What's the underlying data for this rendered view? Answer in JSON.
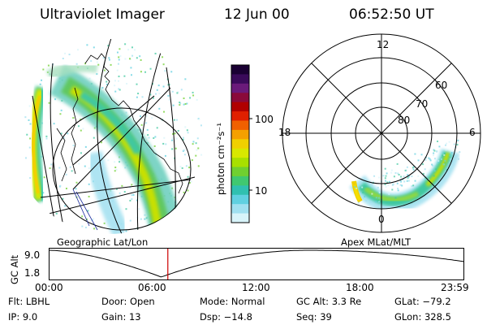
{
  "header": {
    "title": "Ultraviolet Imager",
    "date": "12 Jun 00",
    "time": "06:52:50 UT"
  },
  "left_panel": {
    "caption": "Geographic Lat/Lon"
  },
  "right_panel": {
    "caption": "Apex MLat/MLT",
    "mlt_labels": {
      "top": "12",
      "left": "18",
      "right": "6",
      "bottom": "0"
    },
    "lat_labels": [
      "60",
      "70",
      "80"
    ]
  },
  "colorbar": {
    "label": "photon cm⁻²s⁻¹",
    "ticks": [
      "100",
      "10"
    ],
    "colors": [
      "#1a0033",
      "#3a0a5a",
      "#6a1a7a",
      "#8a0a3a",
      "#b00000",
      "#e02000",
      "#f06000",
      "#f5a000",
      "#f0d000",
      "#d8e800",
      "#a8e000",
      "#70d030",
      "#40c870",
      "#30c0b0",
      "#60d0e0",
      "#a0e0f0",
      "#d8f4fa"
    ]
  },
  "timeline": {
    "ylabel": "GC Alt",
    "ymax": "9.0",
    "ymin": "1.8",
    "ticks": [
      "00:00",
      "06:00",
      "12:00",
      "18:00",
      "23:59"
    ],
    "current_time_hours": 6.88
  },
  "footer": {
    "row1": [
      "Flt: LBHL",
      "Door: Open",
      "Mode: Normal",
      "GC Alt: 3.3 Re",
      "GLat: −79.2"
    ],
    "row2": [
      "IP:  9.0",
      "Gain: 13",
      "Dsp:  −14.8",
      "Seq: 39",
      "GLon: 328.5"
    ]
  },
  "colors": {
    "line": "#000000",
    "marker": "#cc0000"
  }
}
